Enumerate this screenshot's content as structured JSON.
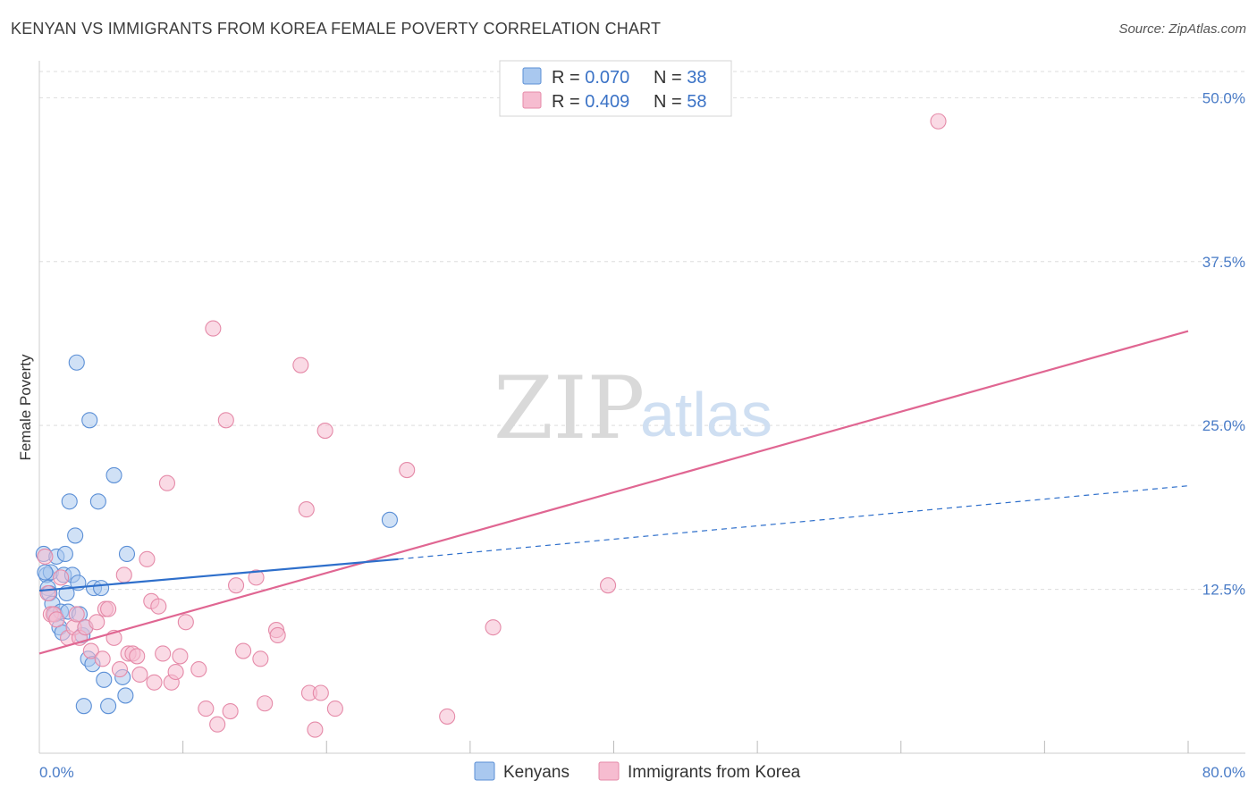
{
  "header": {
    "title": "KENYAN VS IMMIGRANTS FROM KOREA FEMALE POVERTY CORRELATION CHART",
    "source": "Source: ZipAtlas.com"
  },
  "watermark": {
    "zip": "ZIP",
    "atlas": "atlas"
  },
  "colors": {
    "blue_fill": "#a9c8ef",
    "blue_stroke": "#5b8fd6",
    "blue_line": "#2e6fcb",
    "pink_fill": "#f6bcd0",
    "pink_stroke": "#e58aa8",
    "pink_line": "#e06692",
    "tick_text": "#4a7cc7",
    "grid": "#dddddd"
  },
  "legend": {
    "rows": [
      {
        "r_label": "R = ",
        "r_value": "0.070",
        "n_label": "N = ",
        "n_value": "38"
      },
      {
        "r_label": "R = ",
        "r_value": "0.409",
        "n_label": "N = ",
        "n_value": "58"
      }
    ]
  },
  "bottom_legend": {
    "series1": "Kenyans",
    "series2": "Immigrants from Korea"
  },
  "chart_data": {
    "type": "scatter",
    "title": "KENYAN VS IMMIGRANTS FROM KOREA FEMALE POVERTY CORRELATION CHART",
    "xlabel": "",
    "ylabel": "Female Poverty",
    "xlim": [
      0,
      80
    ],
    "ylim": [
      0,
      52
    ],
    "x_tick_labels": [
      "0.0%",
      "80.0%"
    ],
    "y_ticks": [
      12.5,
      25.0,
      37.5,
      50.0
    ],
    "y_tick_labels": [
      "12.5%",
      "25.0%",
      "37.5%",
      "50.0%"
    ],
    "series": [
      {
        "name": "Kenyans",
        "R": 0.07,
        "N": 38,
        "trend": {
          "solid": [
            [
              0,
              12.4
            ],
            [
              25,
              14.8
            ]
          ],
          "dashed": [
            [
              25,
              14.8
            ],
            [
              80,
              20.4
            ]
          ]
        },
        "points": [
          [
            0.3,
            15.2
          ],
          [
            0.5,
            13.6
          ],
          [
            0.6,
            12.6
          ],
          [
            0.7,
            12.2
          ],
          [
            0.8,
            13.8
          ],
          [
            0.9,
            11.4
          ],
          [
            1.1,
            10.6
          ],
          [
            1.2,
            15.0
          ],
          [
            1.4,
            9.6
          ],
          [
            1.5,
            10.8
          ],
          [
            1.6,
            9.2
          ],
          [
            1.7,
            13.6
          ],
          [
            1.8,
            15.2
          ],
          [
            1.9,
            12.2
          ],
          [
            2.0,
            10.8
          ],
          [
            2.1,
            19.2
          ],
          [
            2.3,
            13.6
          ],
          [
            2.5,
            16.6
          ],
          [
            2.6,
            29.8
          ],
          [
            2.7,
            13.0
          ],
          [
            2.8,
            10.6
          ],
          [
            3.0,
            9.0
          ],
          [
            3.1,
            3.6
          ],
          [
            3.2,
            9.6
          ],
          [
            3.4,
            7.2
          ],
          [
            3.5,
            25.4
          ],
          [
            3.7,
            6.8
          ],
          [
            3.8,
            12.6
          ],
          [
            4.1,
            19.2
          ],
          [
            4.3,
            12.6
          ],
          [
            4.5,
            5.6
          ],
          [
            4.8,
            3.6
          ],
          [
            5.2,
            21.2
          ],
          [
            5.8,
            5.8
          ],
          [
            6.0,
            4.4
          ],
          [
            6.1,
            15.2
          ],
          [
            24.4,
            17.8
          ],
          [
            0.4,
            13.8
          ]
        ]
      },
      {
        "name": "Immigrants from Korea",
        "R": 0.409,
        "N": 58,
        "trend": {
          "solid": [
            [
              0,
              7.6
            ],
            [
              80,
              32.2
            ]
          ]
        },
        "points": [
          [
            0.4,
            15.0
          ],
          [
            0.6,
            12.2
          ],
          [
            0.8,
            10.6
          ],
          [
            1.0,
            10.6
          ],
          [
            1.2,
            10.2
          ],
          [
            1.5,
            13.4
          ],
          [
            2.0,
            8.8
          ],
          [
            2.4,
            9.6
          ],
          [
            2.6,
            10.6
          ],
          [
            2.8,
            8.8
          ],
          [
            3.2,
            9.6
          ],
          [
            3.6,
            7.8
          ],
          [
            4.0,
            10.0
          ],
          [
            4.4,
            7.2
          ],
          [
            4.6,
            11.0
          ],
          [
            4.8,
            11.0
          ],
          [
            5.2,
            8.8
          ],
          [
            5.6,
            6.4
          ],
          [
            5.9,
            13.6
          ],
          [
            6.2,
            7.6
          ],
          [
            6.5,
            7.6
          ],
          [
            6.8,
            7.4
          ],
          [
            7.0,
            6.0
          ],
          [
            7.5,
            14.8
          ],
          [
            7.8,
            11.6
          ],
          [
            8.0,
            5.4
          ],
          [
            8.3,
            11.2
          ],
          [
            8.6,
            7.6
          ],
          [
            8.9,
            20.6
          ],
          [
            9.2,
            5.4
          ],
          [
            9.5,
            6.2
          ],
          [
            9.8,
            7.4
          ],
          [
            10.2,
            10.0
          ],
          [
            11.1,
            6.4
          ],
          [
            11.6,
            3.4
          ],
          [
            12.1,
            32.4
          ],
          [
            12.4,
            2.2
          ],
          [
            13.0,
            25.4
          ],
          [
            13.3,
            3.2
          ],
          [
            13.7,
            12.8
          ],
          [
            14.2,
            7.8
          ],
          [
            15.1,
            13.4
          ],
          [
            15.4,
            7.2
          ],
          [
            15.7,
            3.8
          ],
          [
            16.5,
            9.4
          ],
          [
            16.6,
            9.0
          ],
          [
            18.2,
            29.6
          ],
          [
            18.6,
            18.6
          ],
          [
            18.8,
            4.6
          ],
          [
            19.2,
            1.8
          ],
          [
            19.6,
            4.6
          ],
          [
            19.9,
            24.6
          ],
          [
            20.6,
            3.4
          ],
          [
            25.6,
            21.6
          ],
          [
            28.4,
            2.8
          ],
          [
            31.6,
            9.6
          ],
          [
            39.6,
            12.8
          ],
          [
            62.6,
            48.2
          ]
        ]
      }
    ]
  }
}
